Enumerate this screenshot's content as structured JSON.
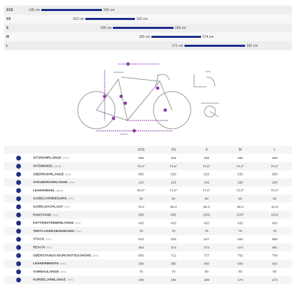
{
  "chart_data": {
    "type": "range",
    "categories": [
      "XXS",
      "XS",
      "S",
      "M",
      "L"
    ],
    "low": [
      145,
      153,
      158,
      165,
      171
    ],
    "high": [
      156,
      162,
      169,
      174,
      182
    ],
    "low_labels": [
      "145 cm",
      "153 cm",
      "158 cm",
      "165 cm",
      "171 cm"
    ],
    "high_labels": [
      "156 cm",
      "162 cm",
      "169 cm",
      "174 cm",
      "182 cm"
    ],
    "color": "#1c2a8c",
    "xlim": [
      140,
      190
    ]
  },
  "table": {
    "columns": [
      "XXS",
      "XS",
      "S",
      "M",
      "L"
    ],
    "rows": [
      {
        "letter": "A",
        "name": "SITZROHRLÄNGE",
        "unit": "(mm)",
        "values": [
          "385",
          "405",
          "455",
          "465",
          "495"
        ]
      },
      {
        "letter": "B",
        "name": "SITZWINKEL",
        "unit": "(grad)",
        "values": [
          "75.0°",
          "74.5°",
          "74.5°",
          "74.0°",
          "74.0°"
        ]
      },
      {
        "letter": "C",
        "name": "OBERROHRLÄNGE",
        "unit": "(mm)",
        "values": [
          "500",
          "520",
          "525",
          "535",
          "550"
        ]
      },
      {
        "letter": "D",
        "name": "STEUERROHRLÄNGE",
        "unit": "(mm)",
        "values": [
          "110",
          "125",
          "145",
          "165",
          "185"
        ]
      },
      {
        "letter": "E",
        "name": "LENKWINKEL",
        "unit": "(grad)",
        "values": [
          "69.8°",
          "71.0°",
          "71.0°",
          "71.0°",
          "72.0°"
        ]
      },
      {
        "letter": "F",
        "name": "GABELVORBIEGUNG",
        "unit": "(mm)",
        "values": [
          "50",
          "50",
          "50",
          "50",
          "50"
        ]
      },
      {
        "letter": "G",
        "name": "GABELNACHLAUF",
        "unit": "(mm)",
        "values": [
          "76.2",
          "68.3",
          "68.3",
          "68.3",
          "61.8"
        ]
      },
      {
        "letter": "H",
        "name": "RADSTAND",
        "unit": "(mm)",
        "values": [
          "989",
          "995",
          "1002",
          "1007",
          "1013"
        ]
      },
      {
        "letter": "I",
        "name": "KETTENSTREBENLÄNGE",
        "unit": "(mm)",
        "values": [
          "420",
          "420",
          "420",
          "420",
          "420"
        ]
      },
      {
        "letter": "J",
        "name": "TRETLAGERABSENKUNG",
        "unit": "(mm)",
        "values": [
          "75",
          "75",
          "75",
          "75",
          "75"
        ]
      },
      {
        "letter": "K",
        "name": "STACK",
        "unit": "(mm)",
        "values": [
          "510",
          "528",
          "547",
          "566",
          "589"
        ]
      },
      {
        "letter": "L",
        "name": "REACH",
        "unit": "(mm)",
        "values": [
          "363",
          "373",
          "373",
          "373",
          "381"
        ]
      },
      {
        "letter": "M",
        "name": "ÜBERSTANDS-/DURCHSTIEGSHÖHE",
        "unit": "(mm)",
        "values": [
          "683",
          "712",
          "737",
          "762",
          "789"
        ]
      },
      {
        "letter": "N",
        "name": "LENKERBREITE",
        "unit": "(mm)",
        "values": [
          "380",
          "380",
          "400",
          "400",
          "420"
        ]
      },
      {
        "letter": "O",
        "name": "VORBAULÄNGE",
        "unit": "(mm)",
        "values": [
          "70",
          "70",
          "80",
          "90",
          "90"
        ]
      },
      {
        "letter": "P",
        "name": "KURBELARMLÄNGE",
        "unit": "(mm)",
        "values": [
          "160",
          "165",
          "165",
          "170",
          "172"
        ]
      }
    ]
  }
}
